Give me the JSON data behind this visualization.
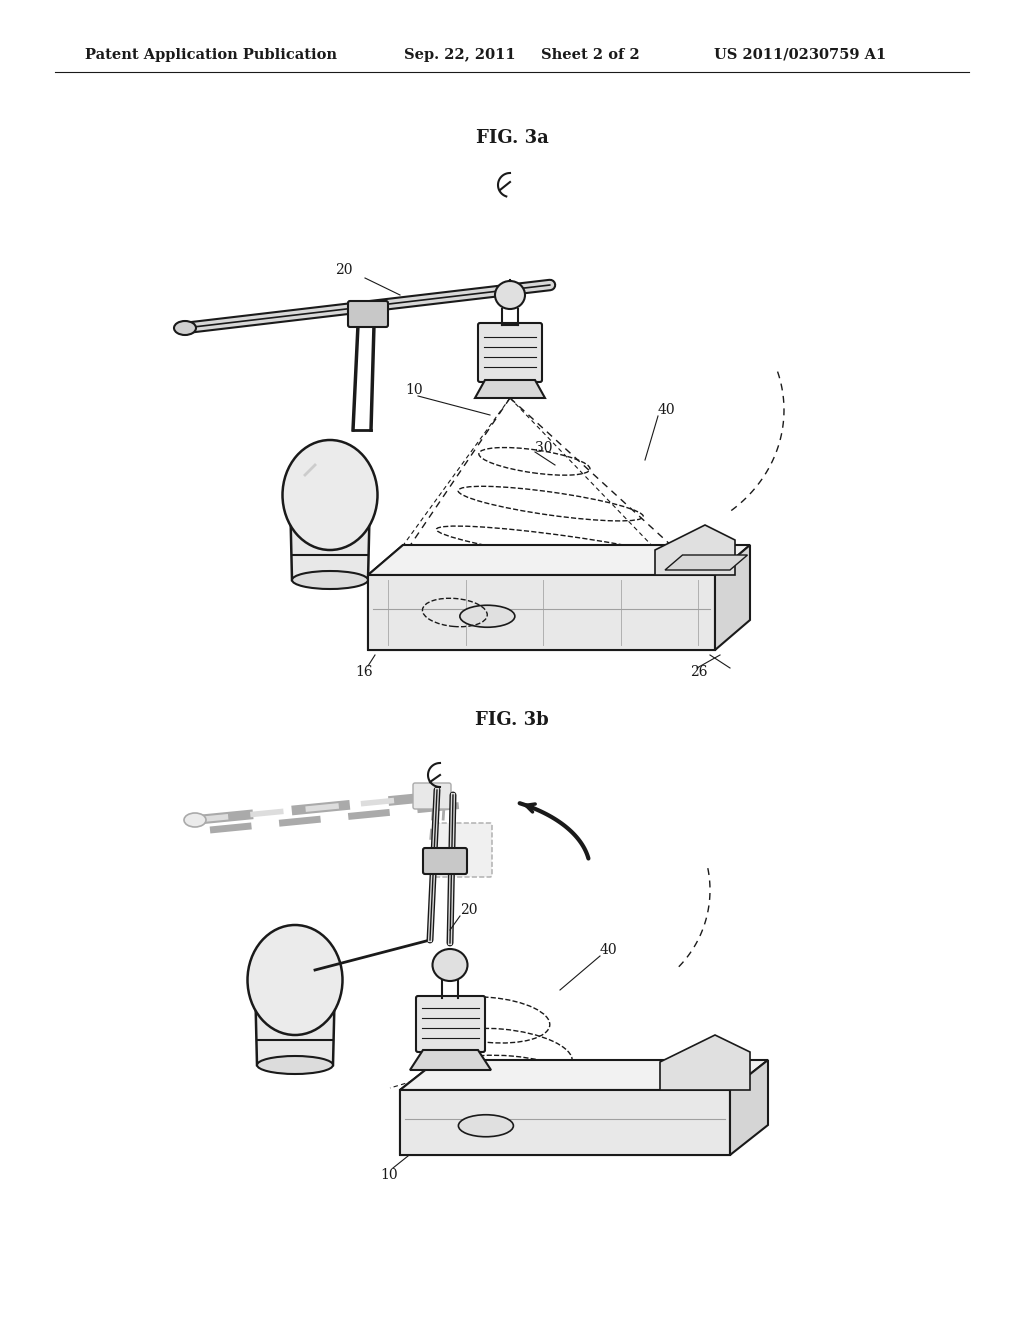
{
  "title": "Patent Application Publication",
  "date": "Sep. 22, 2011",
  "sheet": "Sheet 2 of 2",
  "patent_num": "US 2011/0230759 A1",
  "fig_a_title": "FIG. 3a",
  "fig_b_title": "FIG. 3b",
  "bg_color": "#ffffff",
  "line_color": "#1a1a1a",
  "header_fontsize": 10.5,
  "fig_title_fontsize": 13
}
